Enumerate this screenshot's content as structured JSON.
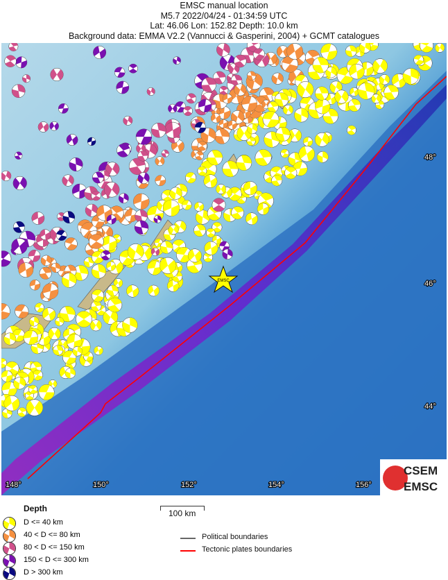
{
  "header": {
    "line1": "EMSC manual location",
    "line2": "M5.7  2022/04/24 - 01:34:59 UTC",
    "line3": "Lat: 46.06    Lon: 152.82     Depth:  10.0 km",
    "line4": "Background data: EMMA V2.2 (Vannucci & Gasperini, 2004) + GCMT catalogues"
  },
  "map": {
    "lon_ticks": [
      "148°",
      "150°",
      "152°",
      "154°",
      "156°"
    ],
    "lat_ticks": [
      "48°",
      "46°",
      "44°"
    ],
    "epicenter_label": "EMSC",
    "logo": {
      "top": "CSEM",
      "bottom": "EMSC"
    },
    "plate_color": "#ff0000"
  },
  "legend": {
    "title": "Depth",
    "items": [
      {
        "label": "D <= 40 km",
        "color": "#ffff00"
      },
      {
        "label": "40 < D <= 80 km",
        "color": "#f59040"
      },
      {
        "label": "80 < D <= 150 km",
        "color": "#d0508a"
      },
      {
        "label": "150 < D <= 300 km",
        "color": "#7a10b0"
      },
      {
        "label": "D > 300 km",
        "color": "#0a0a80"
      }
    ],
    "scale": "100 km",
    "political": "Political boundaries",
    "tectonic": "Tectonic plates boundaries"
  }
}
